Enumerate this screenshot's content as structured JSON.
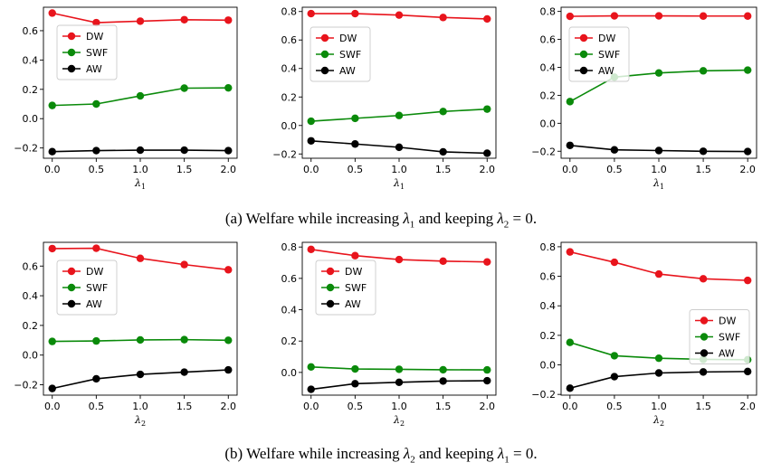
{
  "captions": {
    "a": {
      "pre": "(a) Welfare while increasing ",
      "v1": "λ",
      "s1": "1",
      "mid": " and keeping ",
      "v2": "λ",
      "s2": "2",
      "post": " = 0."
    },
    "b": {
      "pre": "(b) Welfare while increasing ",
      "v1": "λ",
      "s1": "2",
      "mid": " and keeping ",
      "v2": "λ",
      "s2": "1",
      "post": " = 0."
    }
  },
  "colors": {
    "DW": "#e8141c",
    "SWF": "#0a8a0a",
    "AW": "#000000"
  },
  "chart_data": [
    {
      "type": "line",
      "row": "a",
      "x": [
        0.0,
        0.5,
        1.0,
        1.5,
        2.0
      ],
      "xlabel": "λ",
      "xlabel_sub": "1",
      "xticks": [
        "0.0",
        "0.5",
        "1.0",
        "1.5",
        "2.0"
      ],
      "xlim": [
        -0.1,
        2.1
      ],
      "ylim": [
        -0.27,
        0.76
      ],
      "yticks": [
        -0.2,
        0.0,
        0.2,
        0.4,
        0.6
      ],
      "ytick_labels": [
        "−0.2",
        "0.0",
        "0.2",
        "0.4",
        "0.6"
      ],
      "legend_loc": "center-left",
      "series": [
        {
          "name": "DW",
          "values": [
            0.72,
            0.655,
            0.665,
            0.675,
            0.672
          ]
        },
        {
          "name": "SWF",
          "values": [
            0.09,
            0.1,
            0.155,
            0.208,
            0.21
          ]
        },
        {
          "name": "AW",
          "values": [
            -0.225,
            -0.218,
            -0.215,
            -0.215,
            -0.218
          ]
        }
      ]
    },
    {
      "type": "line",
      "row": "a",
      "x": [
        0.0,
        0.5,
        1.0,
        1.5,
        2.0
      ],
      "xlabel": "λ",
      "xlabel_sub": "1",
      "xticks": [
        "0.0",
        "0.5",
        "1.0",
        "1.5",
        "2.0"
      ],
      "xlim": [
        -0.1,
        2.1
      ],
      "ylim": [
        -0.23,
        0.83
      ],
      "yticks": [
        -0.2,
        0.0,
        0.2,
        0.4,
        0.6,
        0.8
      ],
      "ytick_labels": [
        "−0.2",
        "0.0",
        "0.2",
        "0.4",
        "0.6",
        "0.8"
      ],
      "legend_loc": "upper-left",
      "series": [
        {
          "name": "DW",
          "values": [
            0.785,
            0.785,
            0.775,
            0.758,
            0.748
          ]
        },
        {
          "name": "SWF",
          "values": [
            0.03,
            0.05,
            0.07,
            0.098,
            0.115
          ]
        },
        {
          "name": "AW",
          "values": [
            -0.108,
            -0.13,
            -0.153,
            -0.185,
            -0.195
          ]
        }
      ]
    },
    {
      "type": "line",
      "row": "a",
      "x": [
        0.0,
        0.5,
        1.0,
        1.5,
        2.0
      ],
      "xlabel": "λ",
      "xlabel_sub": "1",
      "xticks": [
        "0.0",
        "0.5",
        "1.0",
        "1.5",
        "2.0"
      ],
      "xlim": [
        -0.1,
        2.1
      ],
      "ylim": [
        -0.25,
        0.83
      ],
      "yticks": [
        -0.2,
        0.0,
        0.2,
        0.4,
        0.6,
        0.8
      ],
      "ytick_labels": [
        "−0.2",
        "0.0",
        "0.2",
        "0.4",
        "0.6",
        "0.8"
      ],
      "legend_loc": "upper-left",
      "series": [
        {
          "name": "DW",
          "values": [
            0.765,
            0.768,
            0.768,
            0.767,
            0.767
          ]
        },
        {
          "name": "SWF",
          "values": [
            0.155,
            0.33,
            0.36,
            0.375,
            0.38
          ]
        },
        {
          "name": "AW",
          "values": [
            -0.158,
            -0.19,
            -0.195,
            -0.2,
            -0.202
          ]
        }
      ]
    },
    {
      "type": "line",
      "row": "b",
      "x": [
        0.0,
        0.5,
        1.0,
        1.5,
        2.0
      ],
      "xlabel": "λ",
      "xlabel_sub": "2",
      "xticks": [
        "0.0",
        "0.5",
        "1.0",
        "1.5",
        "2.0"
      ],
      "xlim": [
        -0.1,
        2.1
      ],
      "ylim": [
        -0.27,
        0.76
      ],
      "yticks": [
        -0.2,
        0.0,
        0.2,
        0.4,
        0.6
      ],
      "ytick_labels": [
        "−0.2",
        "0.0",
        "0.2",
        "0.4",
        "0.6"
      ],
      "legend_loc": "center-left",
      "series": [
        {
          "name": "DW",
          "values": [
            0.718,
            0.72,
            0.652,
            0.61,
            0.575
          ]
        },
        {
          "name": "SWF",
          "values": [
            0.092,
            0.095,
            0.102,
            0.104,
            0.1
          ]
        },
        {
          "name": "AW",
          "values": [
            -0.225,
            -0.16,
            -0.13,
            -0.115,
            -0.1
          ]
        }
      ]
    },
    {
      "type": "line",
      "row": "b",
      "x": [
        0.0,
        0.5,
        1.0,
        1.5,
        2.0
      ],
      "xlabel": "λ",
      "xlabel_sub": "2",
      "xticks": [
        "0.0",
        "0.5",
        "1.0",
        "1.5",
        "2.0"
      ],
      "xlim": [
        -0.1,
        2.1
      ],
      "ylim": [
        -0.145,
        0.83
      ],
      "yticks": [
        0.0,
        0.2,
        0.4,
        0.6,
        0.8
      ],
      "ytick_labels": [
        "0.0",
        "0.2",
        "0.4",
        "0.6",
        "0.8"
      ],
      "legend_loc": "center-left",
      "series": [
        {
          "name": "DW",
          "values": [
            0.785,
            0.745,
            0.72,
            0.71,
            0.705
          ]
        },
        {
          "name": "SWF",
          "values": [
            0.035,
            0.022,
            0.02,
            0.017,
            0.016
          ]
        },
        {
          "name": "AW",
          "values": [
            -0.108,
            -0.072,
            -0.063,
            -0.055,
            -0.053
          ]
        }
      ]
    },
    {
      "type": "line",
      "row": "b",
      "x": [
        0.0,
        0.5,
        1.0,
        1.5,
        2.0
      ],
      "xlabel": "λ",
      "xlabel_sub": "2",
      "xticks": [
        "0.0",
        "0.5",
        "1.0",
        "1.5",
        "2.0"
      ],
      "xlim": [
        -0.1,
        2.1
      ],
      "ylim": [
        -0.205,
        0.83
      ],
      "yticks": [
        -0.2,
        0.0,
        0.2,
        0.4,
        0.6,
        0.8
      ],
      "ytick_labels": [
        "−0.2",
        "0.0",
        "0.2",
        "0.4",
        "0.6",
        "0.8"
      ],
      "legend_loc": "center-right",
      "series": [
        {
          "name": "DW",
          "values": [
            0.765,
            0.695,
            0.615,
            0.583,
            0.572
          ]
        },
        {
          "name": "SWF",
          "values": [
            0.152,
            0.062,
            0.045,
            0.037,
            0.035
          ]
        },
        {
          "name": "AW",
          "values": [
            -0.158,
            -0.08,
            -0.055,
            -0.048,
            -0.045
          ]
        }
      ]
    }
  ]
}
